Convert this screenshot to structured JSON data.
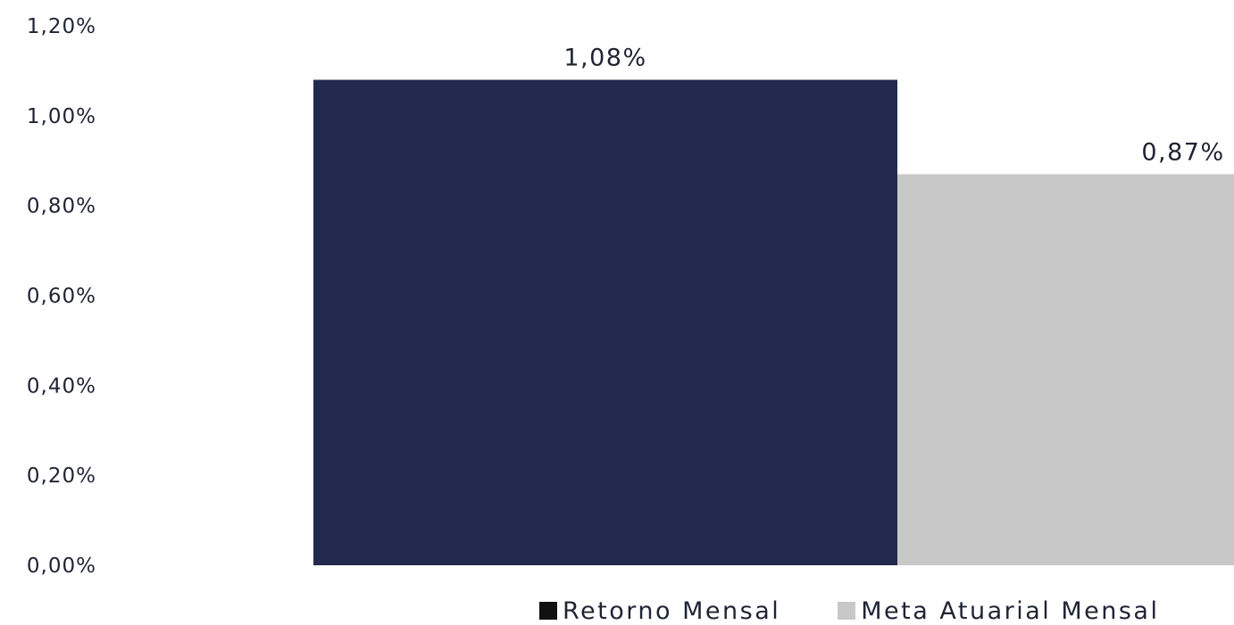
{
  "chart_data": {
    "type": "bar",
    "categories": [
      ""
    ],
    "series": [
      {
        "name": "Retorno Mensal",
        "values": [
          1.08
        ],
        "value_label": "1,08%",
        "color": "#242a4e"
      },
      {
        "name": "Meta Atuarial Mensal",
        "values": [
          0.87
        ],
        "value_label": "0,87%",
        "color": "#c8c8c8"
      }
    ],
    "ylim": [
      0,
      1.2
    ],
    "yticks": [
      0,
      0.2,
      0.4,
      0.6,
      0.8,
      1.0,
      1.2
    ],
    "ytick_labels": [
      "0,00%",
      "0,20%",
      "0,40%",
      "0,60%",
      "0,80%",
      "1,00%",
      "1,20%"
    ],
    "grid": false,
    "legend_position": "bottom-right",
    "title": "",
    "xlabel": "",
    "ylabel": ""
  }
}
